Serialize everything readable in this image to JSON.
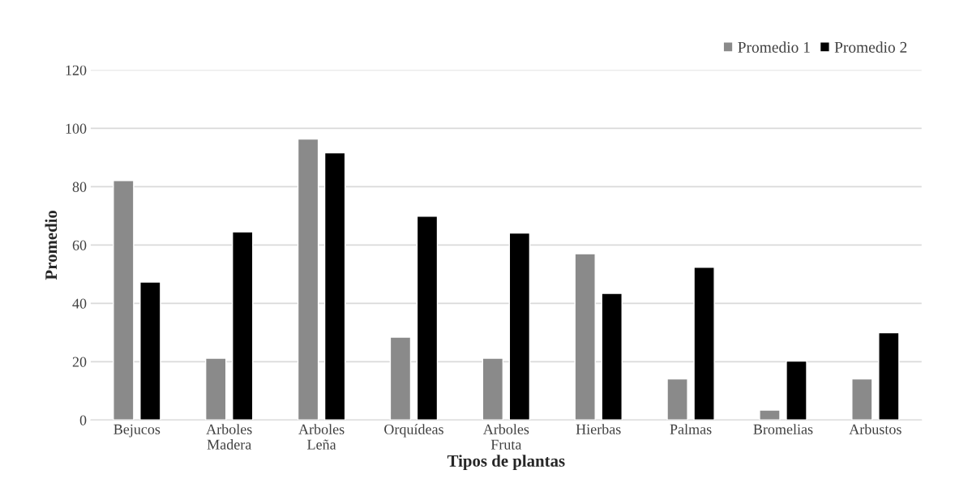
{
  "chart_data": {
    "type": "bar",
    "xlabel": "Tipos de plantas",
    "ylabel": "Promedio",
    "categories": [
      "Bejucos",
      "Arboles\nMadera",
      "Arboles\nLeña",
      "Orquídeas",
      "Arboles\nFruta",
      "Hierbas",
      "Palmas",
      "Bromelias",
      "Arbustos"
    ],
    "series": [
      {
        "name": "Promedio 1",
        "color": "#8a8a8a",
        "values": [
          82.1,
          21.2,
          96.3,
          28.4,
          21.2,
          57,
          14.1,
          3.4,
          14.1
        ]
      },
      {
        "name": "Promedio 2",
        "color": "#000000",
        "values": [
          47.3,
          64.5,
          91.6,
          69.9,
          64.1,
          43.4,
          52.4,
          20.2,
          29.9
        ]
      }
    ],
    "ylim": [
      0,
      120
    ],
    "yticks": [
      0,
      20,
      40,
      60,
      80,
      100,
      120
    ],
    "grid": "y",
    "legend": "top right"
  }
}
